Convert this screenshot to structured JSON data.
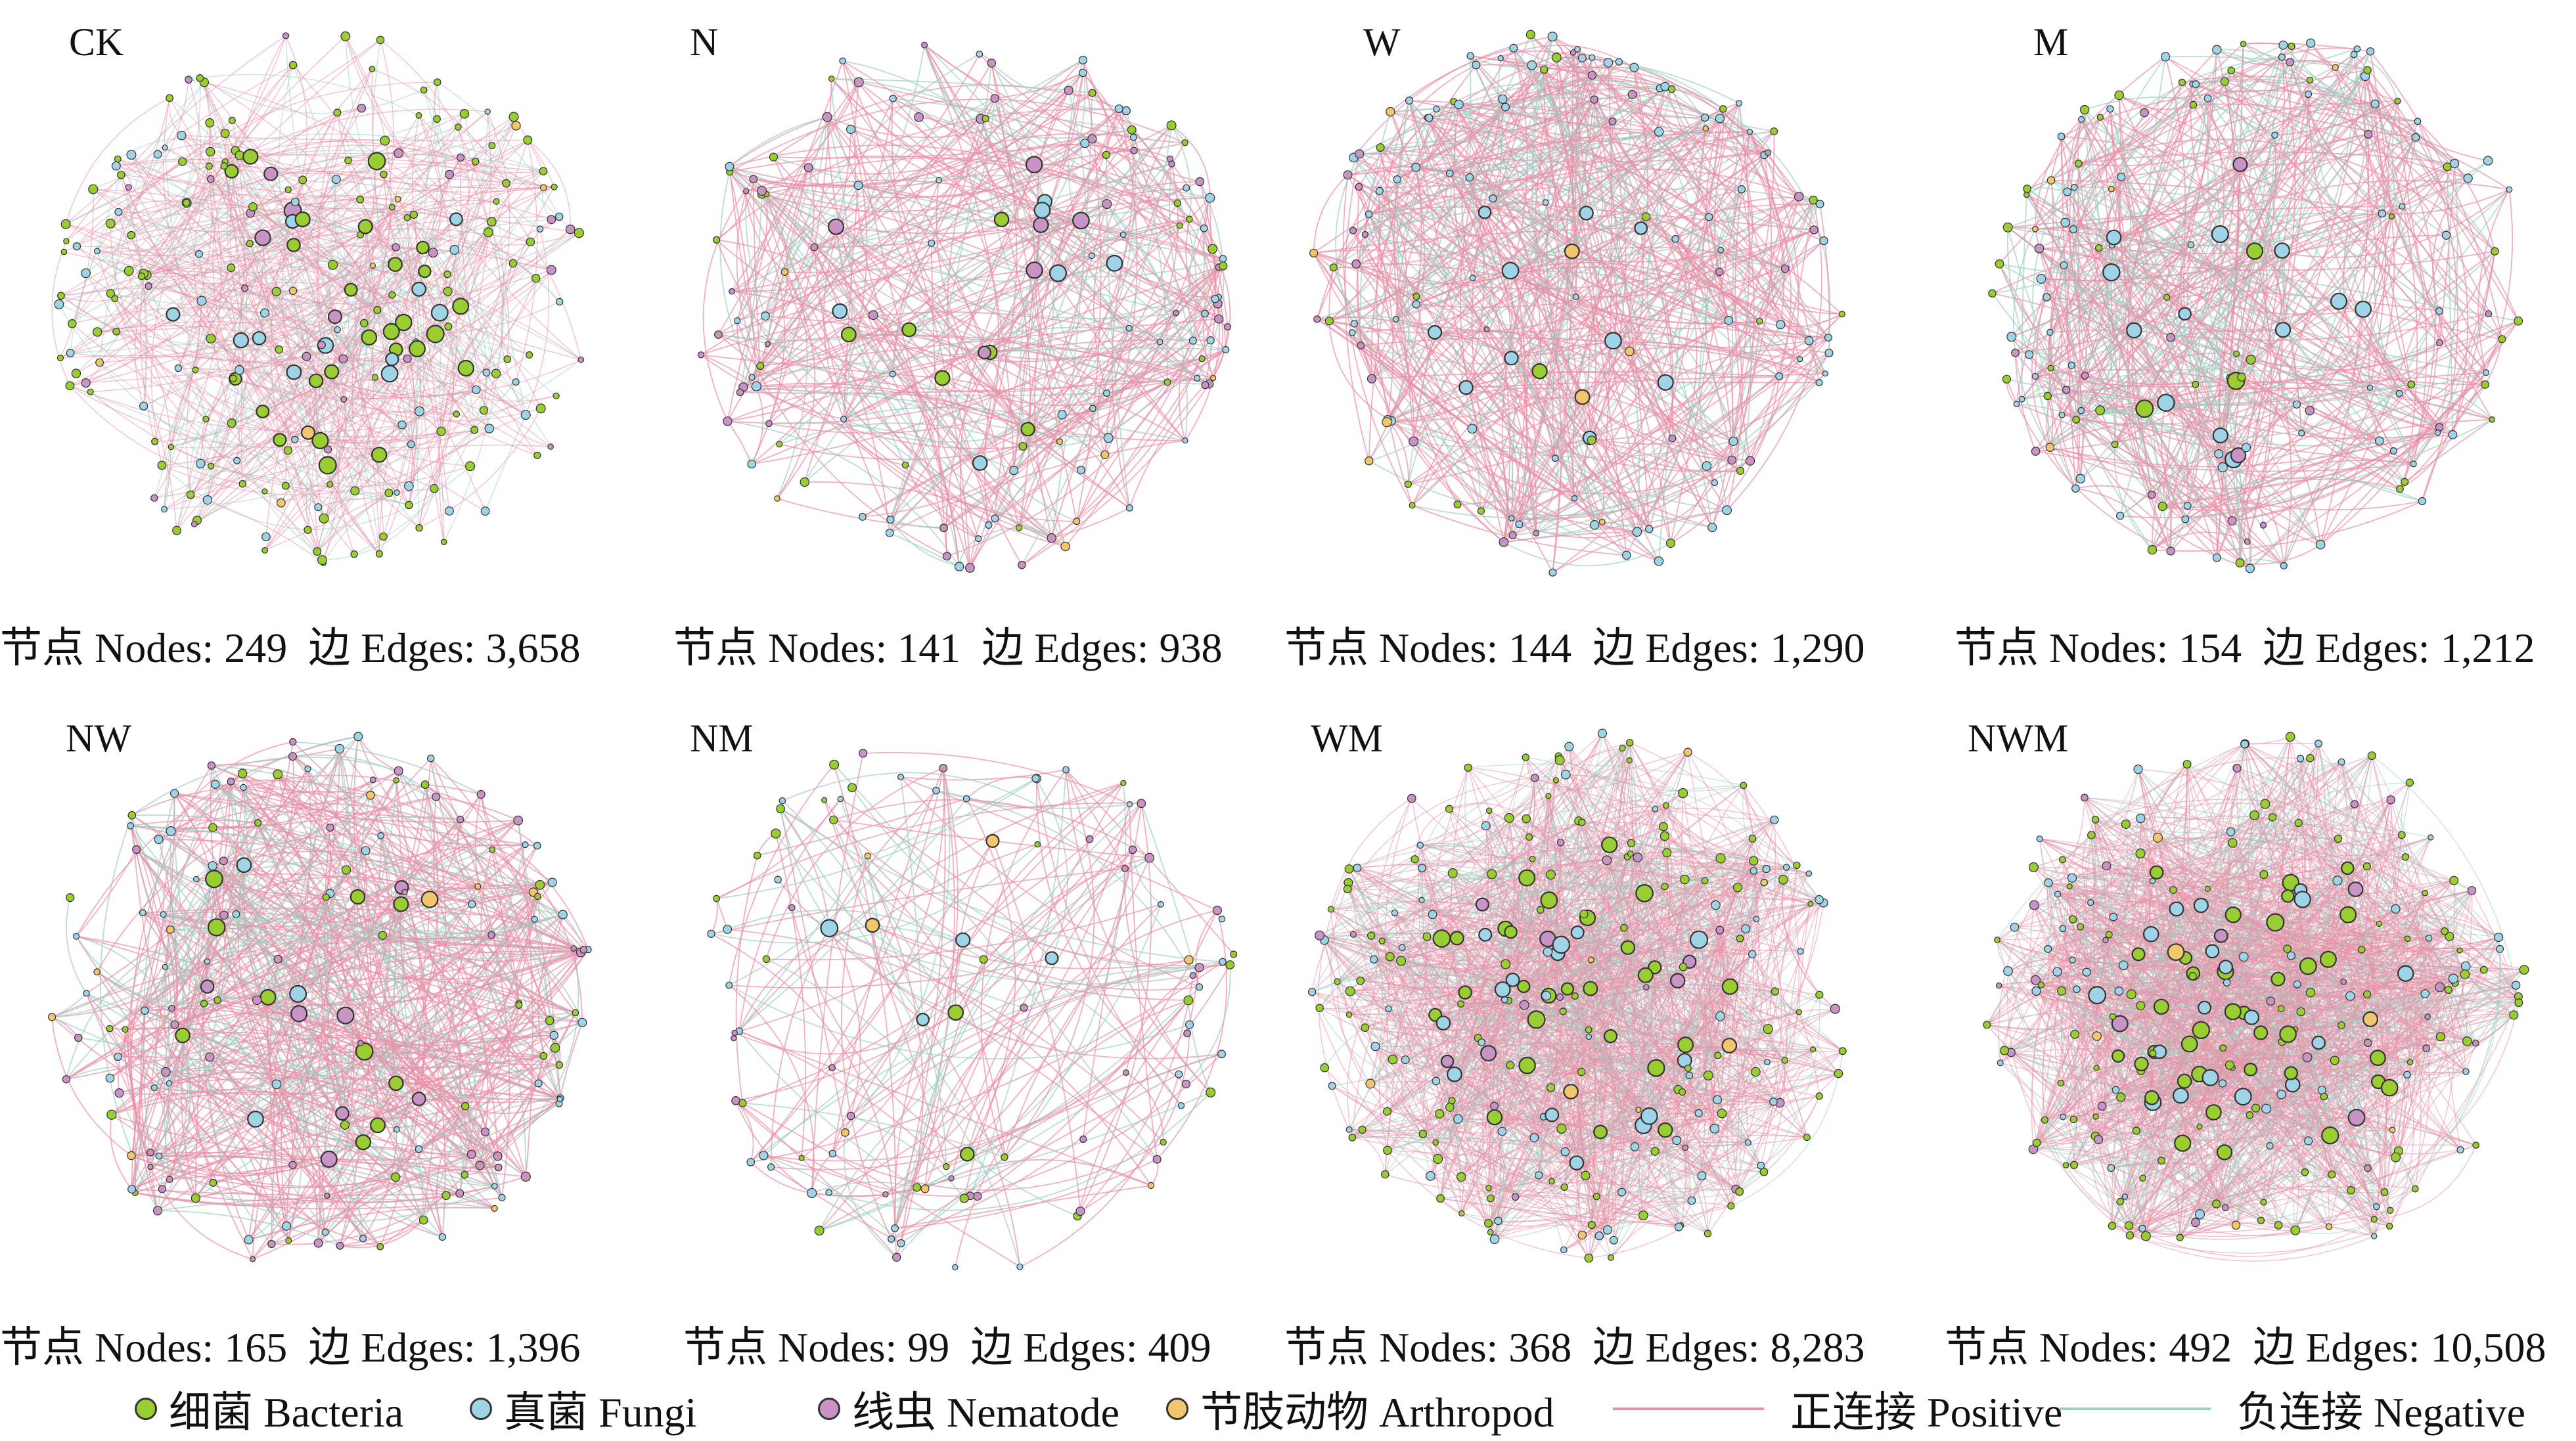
{
  "colors": {
    "bacteria": "#9acd32",
    "fungi": "#9fd4e8",
    "nematode": "#c794c5",
    "arthropod": "#f2c66d",
    "positive": "#e98fa5",
    "negative": "#9ccfc5"
  },
  "panels": [
    {
      "label": "CK",
      "nodes_label": "节点 Nodes: 249",
      "edges_label": "边 Edges: 3,658",
      "nodes": 249,
      "edges": 3658,
      "dominant": "bacteria"
    },
    {
      "label": "N",
      "nodes_label": "节点 Nodes: 141",
      "edges_label": "边 Edges: 938",
      "nodes": 141,
      "edges": 938,
      "dominant": "mixed"
    },
    {
      "label": "W",
      "nodes_label": "节点 Nodes: 144",
      "edges_label": "边 Edges: 1,290",
      "nodes": 144,
      "edges": 1290,
      "dominant": "fungi"
    },
    {
      "label": "M",
      "nodes_label": "节点 Nodes: 154",
      "edges_label": "边 Edges: 1,212",
      "nodes": 154,
      "edges": 1212,
      "dominant": "fungi"
    },
    {
      "label": "NW",
      "nodes_label": "节点 Nodes: 165",
      "edges_label": "边 Edges: 1,396",
      "nodes": 165,
      "edges": 1396,
      "dominant": "mixed"
    },
    {
      "label": "NM",
      "nodes_label": "节点 Nodes: 99",
      "edges_label": "边 Edges: 409",
      "nodes": 99,
      "edges": 409,
      "dominant": "mixed"
    },
    {
      "label": "WM",
      "nodes_label": "节点 Nodes: 368",
      "edges_label": "边 Edges: 8,283",
      "nodes": 368,
      "edges": 8283,
      "dominant": "bacteria"
    },
    {
      "label": "NWM",
      "nodes_label": "节点 Nodes: 492",
      "edges_label": "边 Edges: 10,508",
      "nodes": 492,
      "edges": 10508,
      "dominant": "bacteria"
    }
  ],
  "legend": {
    "bacteria": "细菌 Bacteria",
    "fungi": "真菌 Fungi",
    "nematode": "线虫 Nematode",
    "arthropod": "节肢动物 Arthropod",
    "positive": "正连接 Positive",
    "negative": "负连接 Negative"
  }
}
